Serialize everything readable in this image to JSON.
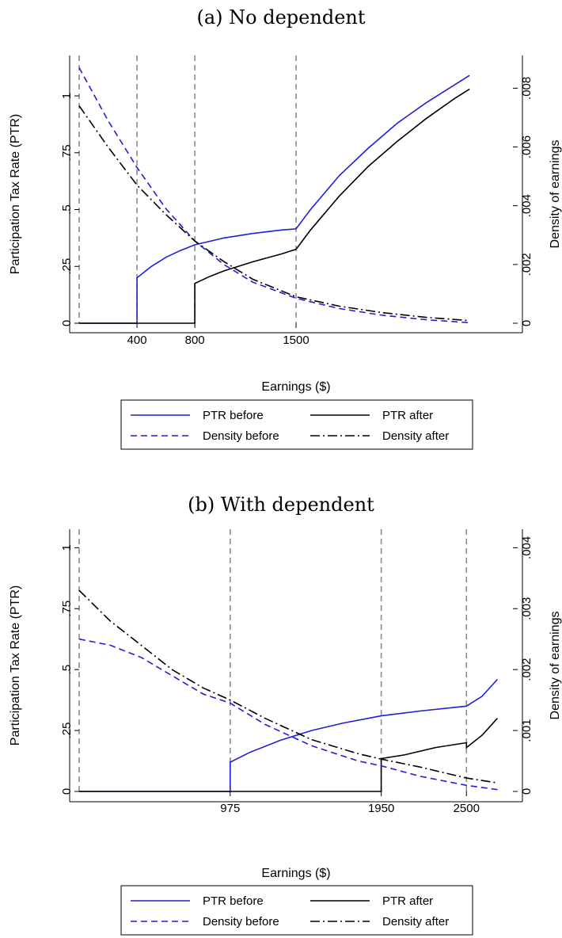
{
  "chart_data": [
    {
      "type": "line",
      "title": "(a) No dependent",
      "xlabel": "Earnings ($)",
      "ylabel": "Participation Tax Rate (PTR)",
      "y2label": "Density of earnings",
      "xlim": [
        0,
        3000
      ],
      "ylim": [
        0,
        1.15
      ],
      "y2lim": [
        0,
        0.0089
      ],
      "x_ticks": [
        400,
        800,
        1500
      ],
      "y_ticks": [
        {
          "v": 0,
          "label": "0"
        },
        {
          "v": 0.25,
          "label": ".25"
        },
        {
          "v": 0.5,
          "label": ".5"
        },
        {
          "v": 0.75,
          "label": ".75"
        },
        {
          "v": 1,
          "label": "1"
        }
      ],
      "y2_ticks": [
        {
          "v": 0,
          "label": "0"
        },
        {
          "v": 0.002,
          "label": ".002"
        },
        {
          "v": 0.004,
          "label": ".004"
        },
        {
          "v": 0.006,
          "label": ".006"
        },
        {
          "v": 0.008,
          "label": ".008"
        }
      ],
      "vlines": [
        0,
        400,
        800,
        1500
      ],
      "series": [
        {
          "name": "PTR before",
          "axis": "left",
          "color": "#1f1fd6",
          "dash": "solid",
          "points": [
            [
              0,
              0
            ],
            [
              400,
              0
            ],
            [
              400,
              0.2
            ],
            [
              500,
              0.25
            ],
            [
              600,
              0.29
            ],
            [
              700,
              0.32
            ],
            [
              800,
              0.345
            ],
            [
              1000,
              0.375
            ],
            [
              1200,
              0.395
            ],
            [
              1400,
              0.41
            ],
            [
              1500,
              0.415
            ],
            [
              1600,
              0.5
            ],
            [
              1800,
              0.65
            ],
            [
              2000,
              0.77
            ],
            [
              2200,
              0.88
            ],
            [
              2400,
              0.97
            ],
            [
              2600,
              1.05
            ],
            [
              2700,
              1.09
            ]
          ]
        },
        {
          "name": "PTR after",
          "axis": "left",
          "color": "#000000",
          "dash": "solid",
          "points": [
            [
              0,
              0
            ],
            [
              800,
              0
            ],
            [
              800,
              0.175
            ],
            [
              900,
              0.205
            ],
            [
              1000,
              0.23
            ],
            [
              1200,
              0.27
            ],
            [
              1400,
              0.305
            ],
            [
              1500,
              0.325
            ],
            [
              1600,
              0.41
            ],
            [
              1800,
              0.56
            ],
            [
              2000,
              0.69
            ],
            [
              2200,
              0.8
            ],
            [
              2400,
              0.9
            ],
            [
              2600,
              0.99
            ],
            [
              2700,
              1.03
            ]
          ]
        },
        {
          "name": "Density before",
          "axis": "right",
          "color": "#1f1fd6",
          "dash": "dashed",
          "points": [
            [
              0,
              0.0087
            ],
            [
              200,
              0.0069
            ],
            [
              400,
              0.0053
            ],
            [
              600,
              0.0039
            ],
            [
              800,
              0.0028
            ],
            [
              1000,
              0.002
            ],
            [
              1200,
              0.0014
            ],
            [
              1500,
              0.00085
            ],
            [
              1800,
              0.0005
            ],
            [
              2100,
              0.00027
            ],
            [
              2400,
              0.00012
            ],
            [
              2700,
              2e-05
            ]
          ]
        },
        {
          "name": "Density after",
          "axis": "right",
          "color": "#000000",
          "dash": "dashdot",
          "points": [
            [
              0,
              0.0074
            ],
            [
              200,
              0.006
            ],
            [
              400,
              0.0047
            ],
            [
              600,
              0.0037
            ],
            [
              800,
              0.0028
            ],
            [
              1000,
              0.0021
            ],
            [
              1200,
              0.0015
            ],
            [
              1500,
              0.0009
            ],
            [
              1800,
              0.00058
            ],
            [
              2100,
              0.00036
            ],
            [
              2400,
              0.0002
            ],
            [
              2700,
              9e-05
            ]
          ]
        }
      ]
    },
    {
      "type": "line",
      "title": "(b) With dependent",
      "xlabel": "Earnings ($)",
      "ylabel": "Participation Tax Rate (PTR)",
      "y2label": "Density of earnings",
      "xlim": [
        0,
        2800
      ],
      "ylim": [
        0,
        1.05
      ],
      "y2lim": [
        0,
        0.0042
      ],
      "x_ticks": [
        975,
        1950,
        2500
      ],
      "y_ticks": [
        {
          "v": 0,
          "label": "0"
        },
        {
          "v": 0.25,
          "label": ".25"
        },
        {
          "v": 0.5,
          "label": ".5"
        },
        {
          "v": 0.75,
          "label": ".75"
        },
        {
          "v": 1,
          "label": "1"
        }
      ],
      "y2_ticks": [
        {
          "v": 0,
          "label": "0"
        },
        {
          "v": 0.001,
          "label": ".001"
        },
        {
          "v": 0.002,
          "label": ".002"
        },
        {
          "v": 0.003,
          "label": ".003"
        },
        {
          "v": 0.004,
          "label": ".004"
        }
      ],
      "vlines": [
        0,
        975,
        1950,
        2500
      ],
      "series": [
        {
          "name": "PTR before",
          "axis": "left",
          "color": "#1f1fd6",
          "dash": "solid",
          "points": [
            [
              0,
              0
            ],
            [
              975,
              0
            ],
            [
              975,
              0.12
            ],
            [
              1100,
              0.16
            ],
            [
              1300,
              0.21
            ],
            [
              1500,
              0.25
            ],
            [
              1700,
              0.28
            ],
            [
              1950,
              0.31
            ],
            [
              2200,
              0.33
            ],
            [
              2500,
              0.35
            ],
            [
              2600,
              0.39
            ],
            [
              2700,
              0.46
            ]
          ]
        },
        {
          "name": "PTR after",
          "axis": "left",
          "color": "#000000",
          "dash": "solid",
          "points": [
            [
              0,
              0
            ],
            [
              1950,
              0
            ],
            [
              1950,
              0.135
            ],
            [
              2100,
              0.15
            ],
            [
              2300,
              0.18
            ],
            [
              2500,
              0.2
            ],
            [
              2500,
              0.18
            ],
            [
              2600,
              0.23
            ],
            [
              2700,
              0.3
            ]
          ]
        },
        {
          "name": "Density before",
          "axis": "right",
          "color": "#1f1fd6",
          "dash": "dashed",
          "points": [
            [
              0,
              0.0025
            ],
            [
              200,
              0.0024
            ],
            [
              400,
              0.0022
            ],
            [
              600,
              0.0019
            ],
            [
              800,
              0.0016
            ],
            [
              975,
              0.00145
            ],
            [
              1200,
              0.0011
            ],
            [
              1500,
              0.00075
            ],
            [
              1800,
              0.0005
            ],
            [
              1950,
              0.00042
            ],
            [
              2200,
              0.00025
            ],
            [
              2500,
              0.0001
            ],
            [
              2700,
              3e-05
            ]
          ]
        },
        {
          "name": "Density after",
          "axis": "right",
          "color": "#000000",
          "dash": "dashdot",
          "points": [
            [
              0,
              0.0033
            ],
            [
              200,
              0.0028
            ],
            [
              400,
              0.0024
            ],
            [
              600,
              0.002
            ],
            [
              800,
              0.0017
            ],
            [
              975,
              0.0015
            ],
            [
              1200,
              0.0012
            ],
            [
              1500,
              0.00085
            ],
            [
              1800,
              0.00062
            ],
            [
              1950,
              0.00053
            ],
            [
              2200,
              0.0004
            ],
            [
              2500,
              0.00022
            ],
            [
              2700,
              0.00014
            ]
          ]
        }
      ]
    }
  ]
}
